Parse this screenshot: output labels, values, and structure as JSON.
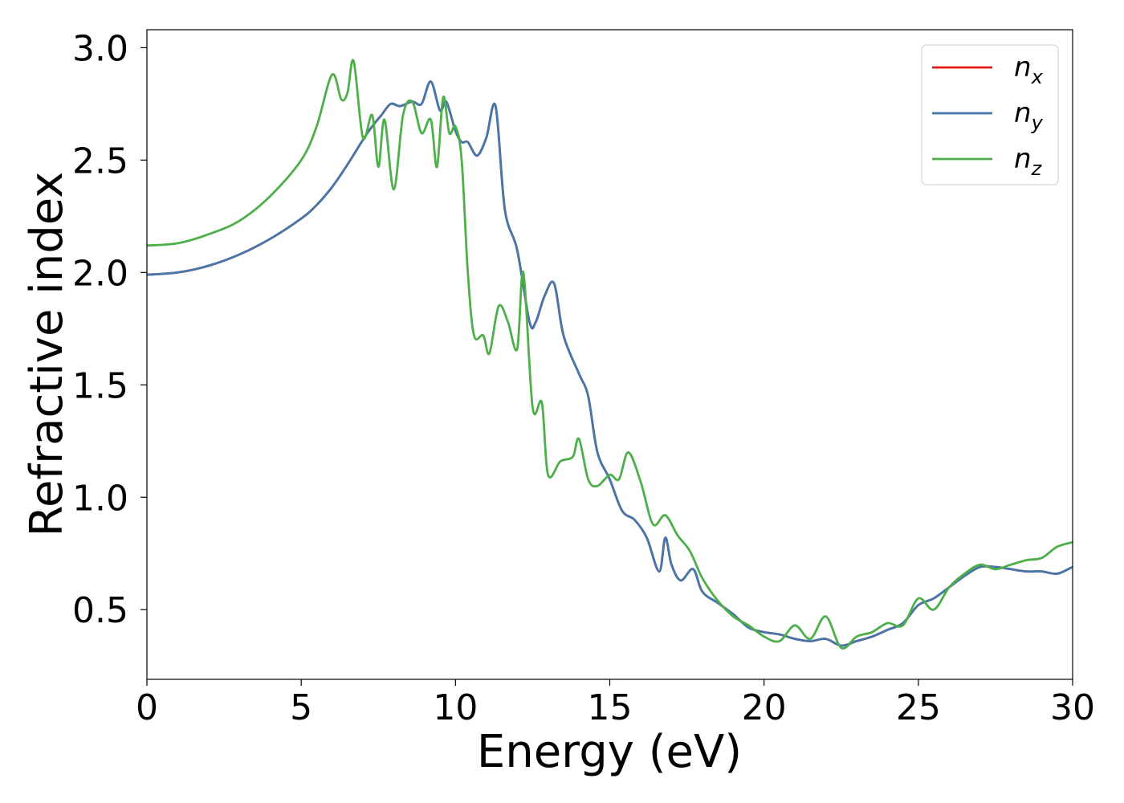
{
  "chart_data": {
    "type": "line",
    "xlabel": "Energy (eV)",
    "ylabel": "Refractive index",
    "xlim": [
      0,
      30
    ],
    "ylim": [
      0.19,
      3.08
    ],
    "xticks": [
      0,
      5,
      10,
      15,
      20,
      25,
      30
    ],
    "xtick_labels": [
      "0",
      "5",
      "10",
      "15",
      "20",
      "25",
      "30"
    ],
    "yticks": [
      0.5,
      1.0,
      1.5,
      2.0,
      2.5,
      3.0
    ],
    "ytick_labels": [
      "0.5",
      "1.0",
      "1.5",
      "2.0",
      "2.5",
      "3.0"
    ],
    "grid": false,
    "legend_position": "top-right",
    "series": [
      {
        "name": "n",
        "subscript": "x",
        "color": "#e41a1c",
        "x": [
          0,
          1,
          2,
          3,
          4,
          5,
          5.5,
          6,
          6.5,
          7,
          7.3,
          7.6,
          7.9,
          8.2,
          8.6,
          8.9,
          9.2,
          9.5,
          9.7,
          10,
          10.2,
          10.4,
          10.7,
          11,
          11.3,
          11.6,
          12,
          12.4,
          12.6,
          12.9,
          13.2,
          13.5,
          14,
          14.3,
          14.6,
          15,
          15.4,
          15.8,
          16.2,
          16.6,
          16.8,
          17,
          17.3,
          17.7,
          18,
          18.5,
          19,
          19.5,
          20,
          20.5,
          21,
          21.5,
          22,
          22.5,
          23,
          23.5,
          24,
          24.5,
          25,
          25.5,
          26,
          26.5,
          27,
          27.5,
          28,
          28.5,
          29,
          29.5,
          30
        ],
        "y": [
          1.99,
          2.0,
          2.03,
          2.08,
          2.15,
          2.24,
          2.3,
          2.38,
          2.48,
          2.59,
          2.65,
          2.7,
          2.75,
          2.74,
          2.76,
          2.75,
          2.85,
          2.72,
          2.76,
          2.63,
          2.58,
          2.58,
          2.52,
          2.6,
          2.74,
          2.28,
          2.1,
          1.78,
          1.78,
          1.9,
          1.95,
          1.72,
          1.55,
          1.45,
          1.2,
          1.08,
          0.94,
          0.9,
          0.82,
          0.67,
          0.82,
          0.7,
          0.63,
          0.68,
          0.58,
          0.53,
          0.48,
          0.42,
          0.4,
          0.39,
          0.37,
          0.36,
          0.37,
          0.34,
          0.36,
          0.38,
          0.41,
          0.44,
          0.52,
          0.55,
          0.6,
          0.65,
          0.69,
          0.69,
          0.68,
          0.67,
          0.67,
          0.66,
          0.69
        ]
      },
      {
        "name": "n",
        "subscript": "y",
        "color": "#4477aa",
        "x": [
          0,
          1,
          2,
          3,
          4,
          5,
          5.5,
          6,
          6.5,
          7,
          7.3,
          7.6,
          7.9,
          8.2,
          8.6,
          8.9,
          9.2,
          9.5,
          9.7,
          10,
          10.2,
          10.4,
          10.7,
          11,
          11.3,
          11.6,
          12,
          12.4,
          12.6,
          12.9,
          13.2,
          13.5,
          14,
          14.3,
          14.6,
          15,
          15.4,
          15.8,
          16.2,
          16.6,
          16.8,
          17,
          17.3,
          17.7,
          18,
          18.5,
          19,
          19.5,
          20,
          20.5,
          21,
          21.5,
          22,
          22.5,
          23,
          23.5,
          24,
          24.5,
          25,
          25.5,
          26,
          26.5,
          27,
          27.5,
          28,
          28.5,
          29,
          29.5,
          30
        ],
        "y": [
          1.99,
          2.0,
          2.03,
          2.08,
          2.15,
          2.24,
          2.3,
          2.38,
          2.48,
          2.59,
          2.65,
          2.7,
          2.75,
          2.74,
          2.76,
          2.75,
          2.85,
          2.72,
          2.76,
          2.63,
          2.58,
          2.58,
          2.52,
          2.6,
          2.74,
          2.28,
          2.1,
          1.78,
          1.78,
          1.9,
          1.95,
          1.72,
          1.55,
          1.45,
          1.2,
          1.08,
          0.94,
          0.9,
          0.82,
          0.67,
          0.82,
          0.7,
          0.63,
          0.68,
          0.58,
          0.53,
          0.48,
          0.42,
          0.4,
          0.39,
          0.37,
          0.36,
          0.37,
          0.34,
          0.36,
          0.38,
          0.41,
          0.44,
          0.52,
          0.55,
          0.6,
          0.65,
          0.69,
          0.69,
          0.68,
          0.67,
          0.67,
          0.66,
          0.69
        ]
      },
      {
        "name": "n",
        "subscript": "z",
        "color": "#4daf4a",
        "x": [
          0,
          1,
          2,
          3,
          4,
          5,
          5.5,
          6,
          6.3,
          6.5,
          6.7,
          7,
          7.3,
          7.5,
          7.7,
          8,
          8.3,
          8.6,
          8.9,
          9.2,
          9.4,
          9.6,
          9.8,
          10,
          10.2,
          10.4,
          10.6,
          10.9,
          11.1,
          11.4,
          11.7,
          12,
          12.2,
          12.5,
          12.8,
          13,
          13.4,
          13.8,
          14,
          14.3,
          14.6,
          15,
          15.3,
          15.6,
          16,
          16.4,
          16.8,
          17.2,
          17.6,
          18,
          18.5,
          19,
          19.5,
          20,
          20.5,
          21,
          21.5,
          22,
          22.5,
          23,
          23.5,
          24,
          24.5,
          25,
          25.5,
          26,
          26.5,
          27,
          27.5,
          28,
          28.5,
          29,
          29.5,
          30
        ],
        "y": [
          2.12,
          2.13,
          2.17,
          2.23,
          2.34,
          2.5,
          2.65,
          2.88,
          2.77,
          2.8,
          2.94,
          2.6,
          2.7,
          2.47,
          2.68,
          2.37,
          2.7,
          2.76,
          2.62,
          2.68,
          2.47,
          2.78,
          2.62,
          2.65,
          2.5,
          2.0,
          1.72,
          1.72,
          1.64,
          1.85,
          1.78,
          1.66,
          2.0,
          1.4,
          1.42,
          1.1,
          1.16,
          1.18,
          1.26,
          1.08,
          1.05,
          1.1,
          1.08,
          1.2,
          1.07,
          0.88,
          0.92,
          0.83,
          0.76,
          0.64,
          0.54,
          0.47,
          0.43,
          0.38,
          0.36,
          0.43,
          0.37,
          0.47,
          0.33,
          0.38,
          0.4,
          0.44,
          0.43,
          0.55,
          0.5,
          0.6,
          0.66,
          0.7,
          0.68,
          0.7,
          0.72,
          0.73,
          0.78,
          0.8
        ]
      }
    ]
  }
}
